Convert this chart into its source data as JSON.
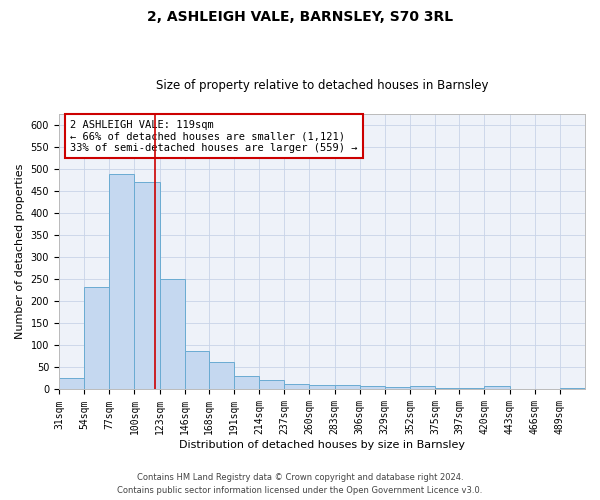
{
  "title": "2, ASHLEIGH VALE, BARNSLEY, S70 3RL",
  "subtitle": "Size of property relative to detached houses in Barnsley",
  "xlabel": "Distribution of detached houses by size in Barnsley",
  "ylabel": "Number of detached properties",
  "bin_labels": [
    "31sqm",
    "54sqm",
    "77sqm",
    "100sqm",
    "123sqm",
    "146sqm",
    "168sqm",
    "191sqm",
    "214sqm",
    "237sqm",
    "260sqm",
    "283sqm",
    "306sqm",
    "329sqm",
    "352sqm",
    "375sqm",
    "397sqm",
    "420sqm",
    "443sqm",
    "466sqm",
    "489sqm"
  ],
  "bin_edges": [
    31,
    54,
    77,
    100,
    123,
    146,
    168,
    191,
    214,
    237,
    260,
    283,
    306,
    329,
    352,
    375,
    397,
    420,
    443,
    466,
    489,
    512
  ],
  "bar_heights": [
    25,
    233,
    490,
    470,
    250,
    88,
    63,
    30,
    22,
    13,
    10,
    10,
    7,
    5,
    7,
    3,
    3,
    7,
    1,
    0,
    3
  ],
  "bar_color": "#c5d8f0",
  "bar_edge_color": "#6aabd2",
  "vline_x": 119,
  "vline_color": "#cc0000",
  "annotation_title": "2 ASHLEIGH VALE: 119sqm",
  "annotation_line1": "← 66% of detached houses are smaller (1,121)",
  "annotation_line2": "33% of semi-detached houses are larger (559) →",
  "annotation_box_edgecolor": "#cc0000",
  "ylim": [
    0,
    625
  ],
  "yticks": [
    0,
    50,
    100,
    150,
    200,
    250,
    300,
    350,
    400,
    450,
    500,
    550,
    600
  ],
  "footnote1": "Contains HM Land Registry data © Crown copyright and database right 2024.",
  "footnote2": "Contains public sector information licensed under the Open Government Licence v3.0.",
  "background_color": "#eef2f9",
  "grid_color": "#c8d4e8",
  "title_fontsize": 10,
  "subtitle_fontsize": 8.5,
  "axis_label_fontsize": 8,
  "tick_fontsize": 7,
  "annot_fontsize": 7.5,
  "footnote_fontsize": 6
}
